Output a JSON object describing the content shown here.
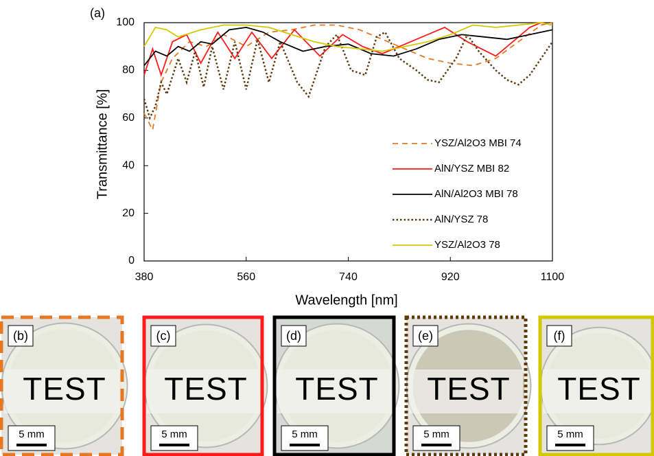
{
  "chart_data": {
    "type": "line",
    "panel_label": "(a)",
    "x_label": "Wavelength [nm]",
    "y_label": "Transmittance [%]",
    "xlim": [
      380,
      1100
    ],
    "ylim": [
      0,
      100
    ],
    "xticks": [
      380,
      560,
      740,
      920,
      1100
    ],
    "yticks": [
      0,
      20,
      40,
      60,
      80,
      100
    ],
    "series": [
      {
        "name": "YSZ/Al2O3 MBI 74",
        "color": "#e87722",
        "style": "dashed",
        "x": [
          380,
          395,
          410,
          430,
          460,
          490,
          520,
          560,
          600,
          640,
          680,
          720,
          760,
          800,
          840,
          880,
          920,
          960,
          1000,
          1040,
          1080,
          1100
        ],
        "values": [
          62,
          55,
          75,
          85,
          92,
          90,
          95,
          90,
          96,
          97,
          99,
          99,
          97,
          93,
          89,
          85,
          83,
          82,
          85,
          92,
          99,
          100
        ]
      },
      {
        "name": "AlN/YSZ MBI 82",
        "color": "#ff1a1a",
        "style": "solid",
        "x": [
          380,
          395,
          410,
          430,
          455,
          480,
          510,
          540,
          570,
          605,
          645,
          690,
          730,
          765,
          800,
          850,
          910,
          950,
          1000,
          1030,
          1060,
          1080,
          1100
        ],
        "values": [
          78,
          89,
          78,
          92,
          95,
          83,
          96,
          85,
          96,
          85,
          97,
          86,
          95,
          90,
          87,
          92,
          98,
          92,
          86,
          92,
          98,
          100,
          99
        ]
      },
      {
        "name": "AlN/Al2O3 MBI 78",
        "color": "#000000",
        "style": "solid",
        "x": [
          380,
          400,
          420,
          440,
          460,
          480,
          500,
          530,
          560,
          590,
          620,
          660,
          700,
          740,
          780,
          820,
          860,
          900,
          940,
          980,
          1020,
          1060,
          1100
        ],
        "values": [
          82,
          88,
          86,
          90,
          88,
          92,
          91,
          97,
          98,
          96,
          92,
          88,
          90,
          91,
          87,
          86,
          89,
          93,
          95,
          94,
          93,
          95,
          97
        ]
      },
      {
        "name": "AlN/YSZ 78",
        "color": "#5c3a0e",
        "style": "dotted",
        "x": [
          380,
          390,
          400,
          410,
          420,
          440,
          455,
          470,
          485,
          500,
          520,
          540,
          560,
          580,
          600,
          620,
          650,
          670,
          700,
          720,
          745,
          770,
          790,
          805,
          830,
          860,
          880,
          900,
          930,
          950,
          970,
          1000,
          1020,
          1040,
          1060,
          1080,
          1100
        ],
        "values": [
          68,
          60,
          65,
          75,
          70,
          85,
          75,
          88,
          73,
          90,
          72,
          92,
          72,
          93,
          75,
          92,
          75,
          69,
          90,
          95,
          80,
          78,
          94,
          96,
          85,
          80,
          76,
          75,
          85,
          95,
          88,
          80,
          76,
          74,
          78,
          85,
          92
        ]
      },
      {
        "name": "YSZ/Al2O3 78",
        "color": "#d4c800",
        "style": "solid",
        "x": [
          380,
          400,
          420,
          440,
          480,
          520,
          560,
          600,
          640,
          680,
          720,
          760,
          800,
          840,
          880,
          920,
          960,
          1000,
          1040,
          1080,
          1100
        ],
        "values": [
          90,
          98,
          97,
          94,
          97,
          99,
          99,
          98,
          95,
          92,
          90,
          89,
          88,
          90,
          92,
          95,
          99,
          98,
          99,
          100,
          99
        ]
      }
    ]
  },
  "panels": [
    {
      "label": "(b)",
      "text": "TEST",
      "scale": "5 mm",
      "color": "#e87722",
      "style": "dashed"
    },
    {
      "label": "(c)",
      "text": "TEST",
      "scale": "5 mm",
      "color": "#ff1a1a",
      "style": "solid"
    },
    {
      "label": "(d)",
      "text": "TEST",
      "scale": "5 mm",
      "color": "#000000",
      "style": "solid"
    },
    {
      "label": "(e)",
      "text": "TEST",
      "scale": "5 mm",
      "color": "#5c3a0e",
      "style": "dotted"
    },
    {
      "label": "(f)",
      "text": "TEST",
      "scale": "5 mm",
      "color": "#d4c800",
      "style": "solid"
    }
  ]
}
